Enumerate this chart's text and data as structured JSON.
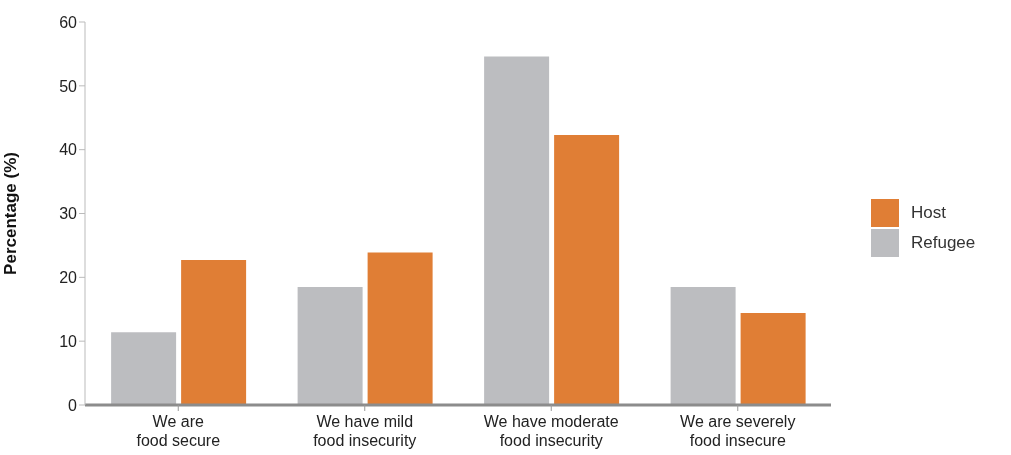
{
  "chart_data": {
    "type": "bar",
    "ylabel": "Percentage (%)",
    "categories": [
      "We are\nfood secure",
      "We have mild\nfood insecurity",
      "We have moderate\nfood insecurity",
      "We are severely\nfood insecure"
    ],
    "series": [
      {
        "name": "Refugee",
        "color": "#bcbdc0",
        "values": [
          11.4,
          18.5,
          54.6,
          18.5
        ]
      },
      {
        "name": "Host",
        "color": "#e07e35",
        "values": [
          22.7,
          23.9,
          42.3,
          14.4
        ]
      }
    ],
    "ylim": [
      0,
      60
    ],
    "yticks": [
      0,
      10,
      20,
      30,
      40,
      50,
      60
    ],
    "grid": false,
    "legend": "right"
  }
}
